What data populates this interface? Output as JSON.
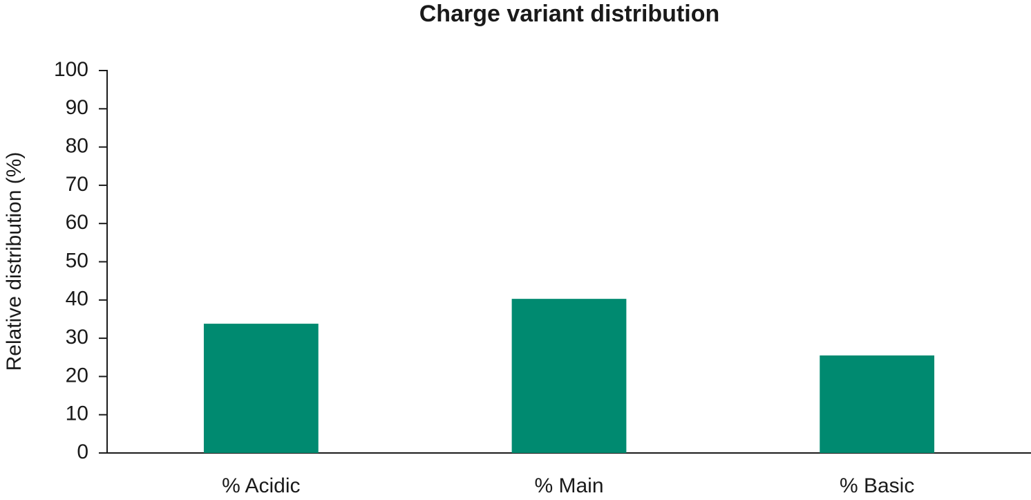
{
  "chart_data": {
    "type": "bar",
    "title": "Charge variant distribution",
    "y_label": "Relative distribution (%)",
    "categories": [
      "% Acidic",
      "% Main",
      "% Basic"
    ],
    "values": [
      33.8,
      40.3,
      25.5
    ],
    "color": "#008a70",
    "ylim": [
      0,
      100
    ],
    "yticks": [
      0,
      10,
      20,
      30,
      40,
      50,
      60,
      70,
      80,
      90,
      100
    ],
    "grid": false
  }
}
